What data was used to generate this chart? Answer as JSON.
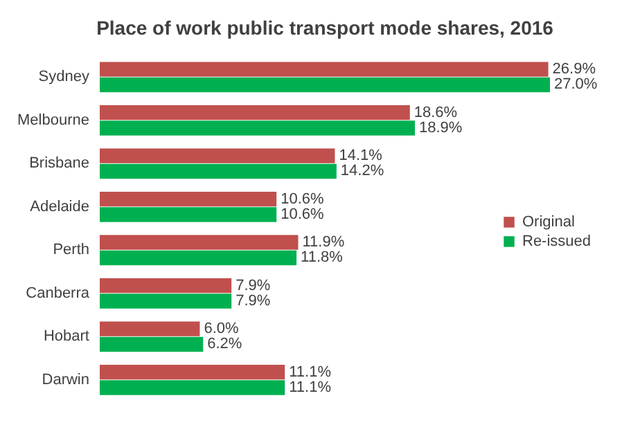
{
  "chart_data": {
    "type": "bar",
    "orientation": "horizontal",
    "title": "Place of work public transport mode shares, 2016",
    "categories": [
      "Sydney",
      "Melbourne",
      "Brisbane",
      "Adelaide",
      "Perth",
      "Canberra",
      "Hobart",
      "Darwin"
    ],
    "series": [
      {
        "name": "Original",
        "color": "#c0504d",
        "values": [
          26.9,
          18.6,
          14.1,
          10.6,
          11.9,
          7.9,
          6.0,
          11.1
        ],
        "value_labels": [
          "26.9%",
          "18.6%",
          "14.1%",
          "10.6%",
          "11.9%",
          "7.9%",
          "6.0%",
          "11.1%"
        ]
      },
      {
        "name": "Re-issued",
        "color": "#00b050",
        "values": [
          27.0,
          18.9,
          14.2,
          10.6,
          11.8,
          7.9,
          6.2,
          11.1
        ],
        "value_labels": [
          "27.0%",
          "18.9%",
          "14.2%",
          "10.6%",
          "11.8%",
          "7.9%",
          "6.2%",
          "11.1%"
        ]
      }
    ],
    "legend": "right",
    "grid": false
  }
}
